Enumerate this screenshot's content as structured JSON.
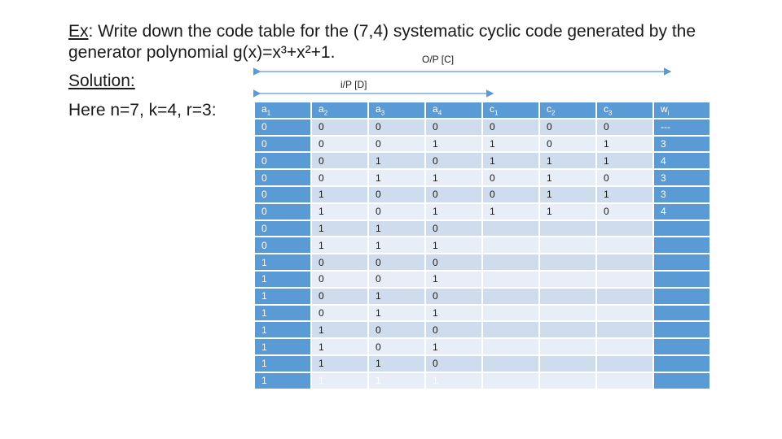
{
  "heading": {
    "ex_label": "Ex",
    "line1_text": ": Write down the code table for the (7,4) systematic cyclic code generated by the",
    "line2_text": "generator polynomial g(x)=x³+x²+1."
  },
  "solution_label": "Solution:",
  "params_text": "Here n=7, k=4, r=3:",
  "output_label": "O/P  [C]",
  "input_label": "i/P  [D]",
  "colors": {
    "header": "#5b9bd5",
    "row_dark": "#cfdcee",
    "row_light": "#e8eef7",
    "arrow": "#5b9bd5"
  },
  "table": {
    "headers": [
      {
        "base": "a",
        "sub": "1"
      },
      {
        "base": "a",
        "sub": "2"
      },
      {
        "base": "a",
        "sub": "3"
      },
      {
        "base": "a",
        "sub": "4"
      },
      {
        "base": "c",
        "sub": "1"
      },
      {
        "base": "c",
        "sub": "2"
      },
      {
        "base": "c",
        "sub": "3"
      },
      {
        "base": "w",
        "sub": "i"
      }
    ],
    "rows": [
      [
        "0",
        "0",
        "0",
        "0",
        "0",
        "0",
        "0",
        "---"
      ],
      [
        "0",
        "0",
        "0",
        "1",
        "1",
        "0",
        "1",
        "3"
      ],
      [
        "0",
        "0",
        "1",
        "0",
        "1",
        "1",
        "1",
        "4"
      ],
      [
        "0",
        "0",
        "1",
        "1",
        "0",
        "1",
        "0",
        "3"
      ],
      [
        "0",
        "1",
        "0",
        "0",
        "0",
        "1",
        "1",
        "3"
      ],
      [
        "0",
        "1",
        "0",
        "1",
        "1",
        "1",
        "0",
        "4"
      ],
      [
        "0",
        "1",
        "1",
        "0",
        "",
        "",
        "",
        ""
      ],
      [
        "0",
        "1",
        "1",
        "1",
        "",
        "",
        "",
        ""
      ],
      [
        "1",
        "0",
        "0",
        "0",
        "",
        "",
        "",
        ""
      ],
      [
        "1",
        "0",
        "0",
        "1",
        "",
        "",
        "",
        ""
      ],
      [
        "1",
        "0",
        "1",
        "0",
        "",
        "",
        "",
        ""
      ],
      [
        "1",
        "0",
        "1",
        "1",
        "",
        "",
        "",
        ""
      ],
      [
        "1",
        "1",
        "0",
        "0",
        "",
        "",
        "",
        ""
      ],
      [
        "1",
        "1",
        "0",
        "1",
        "",
        "",
        "",
        ""
      ],
      [
        "1",
        "1",
        "1",
        "0",
        "",
        "",
        "",
        ""
      ],
      [
        "1",
        "1",
        "1",
        "1",
        "",
        "",
        "",
        ""
      ]
    ]
  }
}
